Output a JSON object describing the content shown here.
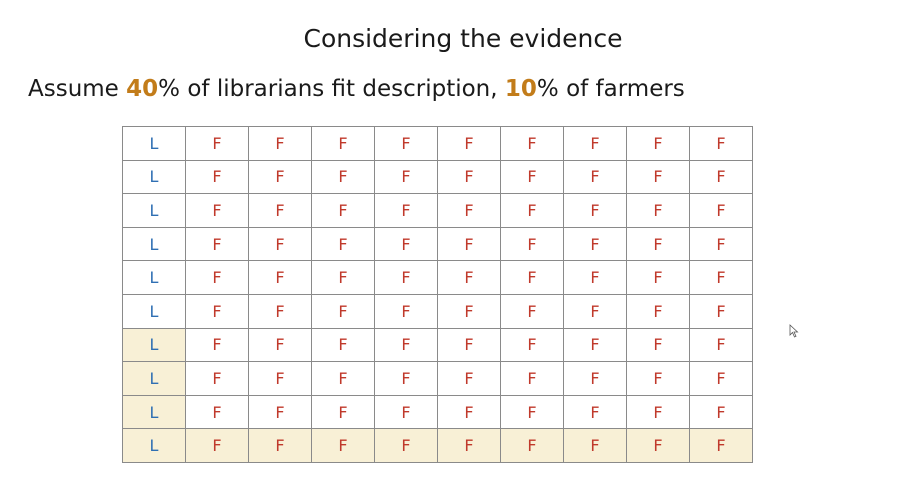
{
  "slide": {
    "title": "Considering the evidence",
    "subtitle": {
      "prefix": "Assume ",
      "librarian_pct": "40",
      "middle": "% of librarians fit description, ",
      "farmer_pct": "10",
      "suffix": "% of farmers"
    }
  },
  "grid": {
    "rows": 10,
    "cols": 10,
    "librarian_symbol": "L",
    "farmer_symbol": "F",
    "librarian_fit_rows": [
      6,
      7,
      8,
      9
    ],
    "farmer_fit_rows": [
      9
    ],
    "colors": {
      "librarian": "#2f6fb3",
      "farmer": "#c0392b",
      "highlight": "#f8f0d6",
      "percent": "#c27c1a"
    }
  }
}
